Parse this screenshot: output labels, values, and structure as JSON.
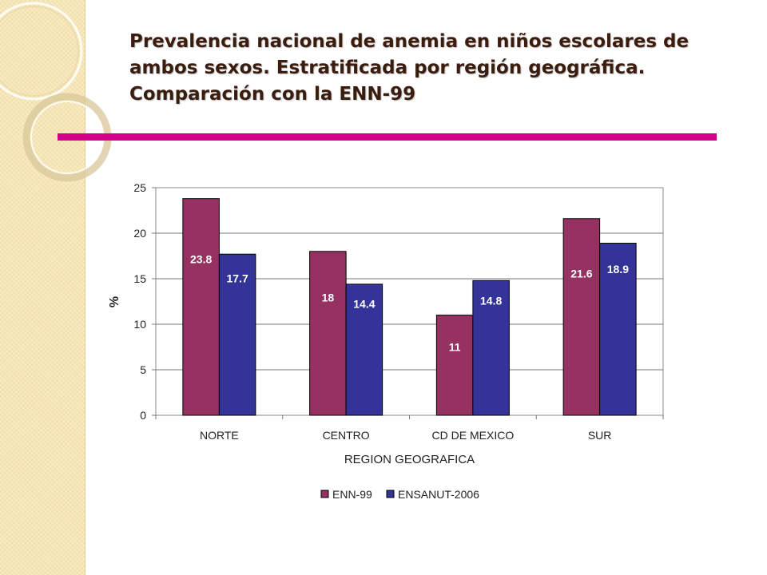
{
  "slide": {
    "title_lines": [
      "Prevalencia nacional de anemia en niños escolares de",
      "ambos sexos. Estratificada por región geográfica.",
      "Comparación con la ENN-99"
    ]
  },
  "colors": {
    "accent_rule": "#d3008a",
    "band": "#f6e6b6",
    "ring": "#e0d0a0"
  },
  "chart_data": {
    "type": "bar",
    "categories": [
      "NORTE",
      "CENTRO",
      "CD DE MEXICO",
      "SUR"
    ],
    "series": [
      {
        "name": "ENN-99",
        "values": [
          23.8,
          18,
          11,
          21.6
        ],
        "labels": [
          "23.8",
          "18",
          "11",
          "21.6"
        ],
        "color": "#953262"
      },
      {
        "name": "ENSANUT-2006",
        "values": [
          17.7,
          14.4,
          14.8,
          18.9
        ],
        "labels": [
          "17.7",
          "14.4",
          "14.8",
          "18.9"
        ],
        "color": "#333399"
      }
    ],
    "title": "",
    "xlabel": "REGION GEOGRAFICA",
    "ylabel": "%",
    "ylim": [
      0,
      25
    ],
    "yticks": [
      "0",
      "5",
      "10",
      "15",
      "20",
      "25"
    ],
    "grid": true,
    "legend": "bottom-center"
  }
}
